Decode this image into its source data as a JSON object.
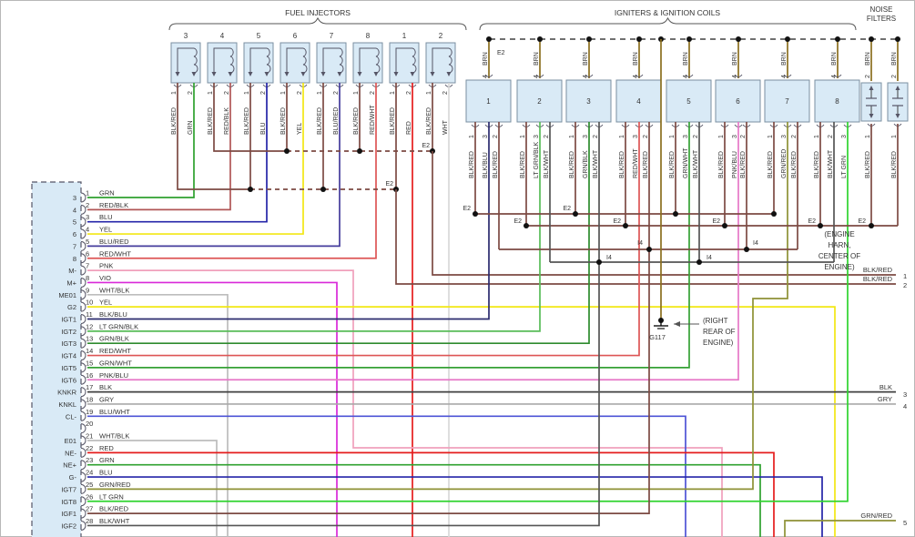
{
  "sections": {
    "fuel_injectors": "FUEL INJECTORS",
    "igniters": "IGNITERS & IGNITION COILS",
    "noise_filters_line1": "NOISE",
    "noise_filters_line2": "FILTERS"
  },
  "injectors": [
    {
      "number": "3",
      "pins": [
        {
          "num": "1",
          "wire": "BLK/RED"
        },
        {
          "num": "2",
          "wire": "GRN"
        }
      ]
    },
    {
      "number": "4",
      "pins": [
        {
          "num": "1",
          "wire": "BLK/RED"
        },
        {
          "num": "2",
          "wire": "RED/BLK"
        }
      ]
    },
    {
      "number": "5",
      "pins": [
        {
          "num": "1",
          "wire": "BLK/RED"
        },
        {
          "num": "2",
          "wire": "BLU"
        }
      ]
    },
    {
      "number": "6",
      "pins": [
        {
          "num": "1",
          "wire": "BLK/RED"
        },
        {
          "num": "2",
          "wire": "YEL"
        }
      ]
    },
    {
      "number": "7",
      "pins": [
        {
          "num": "1",
          "wire": "BLK/RED"
        },
        {
          "num": "2",
          "wire": "BLU/RED"
        }
      ]
    },
    {
      "number": "8",
      "pins": [
        {
          "num": "1",
          "wire": "BLK/RED"
        },
        {
          "num": "2",
          "wire": "RED/WHT"
        }
      ]
    },
    {
      "number": "1",
      "pins": [
        {
          "num": "1",
          "wire": "BLK/RED"
        },
        {
          "num": "2",
          "wire": "RED"
        }
      ]
    },
    {
      "number": "2",
      "pins": [
        {
          "num": "1",
          "wire": "BLK/RED"
        },
        {
          "num": "2",
          "wire": "WHT"
        }
      ]
    }
  ],
  "igniters": [
    {
      "number": "1",
      "top_pin": {
        "num": "4",
        "wire": "BRN"
      },
      "bottom_pins": [
        {
          "num": "1",
          "wire": "BLK/RED"
        },
        {
          "num": "3",
          "wire": "BLK/BLU"
        },
        {
          "num": "2",
          "wire": "BLK/RED"
        }
      ]
    },
    {
      "number": "2",
      "top_pin": {
        "num": "4",
        "wire": "BRN"
      },
      "bottom_pins": [
        {
          "num": "1",
          "wire": "BLK/RED"
        },
        {
          "num": "3",
          "wire": "LT GRN/BLK"
        },
        {
          "num": "2",
          "wire": "BLK/WHT"
        }
      ]
    },
    {
      "number": "3",
      "top_pin": {
        "num": "4",
        "wire": "BRN"
      },
      "bottom_pins": [
        {
          "num": "1",
          "wire": "BLK/RED"
        },
        {
          "num": "3",
          "wire": "GRN/BLK"
        },
        {
          "num": "2",
          "wire": "BLK/WHT"
        }
      ]
    },
    {
      "number": "4",
      "top_pin": {
        "num": "4",
        "wire": "BRN"
      },
      "bottom_pins": [
        {
          "num": "1",
          "wire": "BLK/RED"
        },
        {
          "num": "3",
          "wire": "RED/WHT"
        },
        {
          "num": "2",
          "wire": "BLK/RED"
        }
      ]
    },
    {
      "number": "5",
      "top_pin": {
        "num": "4",
        "wire": "BRN"
      },
      "bottom_pins": [
        {
          "num": "1",
          "wire": "BLK/RED"
        },
        {
          "num": "3",
          "wire": "GRN/WHT"
        },
        {
          "num": "2",
          "wire": "BLK/WHT"
        }
      ]
    },
    {
      "number": "6",
      "top_pin": {
        "num": "4",
        "wire": "BRN"
      },
      "bottom_pins": [
        {
          "num": "1",
          "wire": "BLK/RED"
        },
        {
          "num": "3",
          "wire": "PNK/BLU"
        },
        {
          "num": "2",
          "wire": "BLK/RED"
        }
      ]
    },
    {
      "number": "7",
      "top_pin": {
        "num": "4",
        "wire": "BRN"
      },
      "bottom_pins": [
        {
          "num": "1",
          "wire": "BLK/RED"
        },
        {
          "num": "3",
          "wire": "GRN/RED"
        },
        {
          "num": "2",
          "wire": "BLK/RED"
        }
      ]
    },
    {
      "number": "8",
      "top_pin": {
        "num": "4",
        "wire": "BRN"
      },
      "bottom_pins": [
        {
          "num": "1",
          "wire": "BLK/RED"
        },
        {
          "num": "2",
          "wire": "BLK/WHT"
        },
        {
          "num": "3",
          "wire": "LT GRN"
        }
      ]
    }
  ],
  "noise_filters": [
    {
      "top_pin": {
        "num": "2",
        "wire": "BRN"
      },
      "bottom_pin": {
        "num": "1",
        "wire": "BLK/RED"
      }
    },
    {
      "top_pin": {
        "num": "2",
        "wire": "BRN"
      },
      "bottom_pin": {
        "num": "1",
        "wire": "BLK/RED"
      }
    }
  ],
  "ecu_connector": {
    "pins": [
      {
        "num": "1",
        "name": "3",
        "wire": "GRN"
      },
      {
        "num": "2",
        "name": "4",
        "wire": "RED/BLK"
      },
      {
        "num": "3",
        "name": "5",
        "wire": "BLU"
      },
      {
        "num": "4",
        "name": "6",
        "wire": "YEL"
      },
      {
        "num": "5",
        "name": "7",
        "wire": "BLU/RED"
      },
      {
        "num": "6",
        "name": "8",
        "wire": "RED/WHT"
      },
      {
        "num": "7",
        "name": "M-",
        "wire": "PNK"
      },
      {
        "num": "8",
        "name": "M+",
        "wire": "VIO"
      },
      {
        "num": "9",
        "name": "ME01",
        "wire": "WHT/BLK"
      },
      {
        "num": "10",
        "name": "G2",
        "wire": "YEL"
      },
      {
        "num": "11",
        "name": "IGT1",
        "wire": "BLK/BLU"
      },
      {
        "num": "12",
        "name": "IGT2",
        "wire": "LT GRN/BLK"
      },
      {
        "num": "13",
        "name": "IGT3",
        "wire": "GRN/BLK"
      },
      {
        "num": "14",
        "name": "IGT4",
        "wire": "RED/WHT"
      },
      {
        "num": "15",
        "name": "IGT5",
        "wire": "GRN/WHT"
      },
      {
        "num": "16",
        "name": "IGT6",
        "wire": "PNK/BLU"
      },
      {
        "num": "17",
        "name": "KNKR",
        "wire": "BLK"
      },
      {
        "num": "18",
        "name": "KNKL",
        "wire": "GRY"
      },
      {
        "num": "19",
        "name": "CL-",
        "wire": "BLU/WHT"
      },
      {
        "num": "20",
        "name": "",
        "wire": ""
      },
      {
        "num": "21",
        "name": "E01",
        "wire": "WHT/BLK"
      },
      {
        "num": "22",
        "name": "NE-",
        "wire": "RED"
      },
      {
        "num": "23",
        "name": "NE+",
        "wire": "GRN"
      },
      {
        "num": "24",
        "name": "G-",
        "wire": "BLU"
      },
      {
        "num": "25",
        "name": "IGT7",
        "wire": "GRN/RED"
      },
      {
        "num": "26",
        "name": "IGT8",
        "wire": "LT GRN"
      },
      {
        "num": "27",
        "name": "IGF1",
        "wire": "BLK/RED"
      },
      {
        "num": "28",
        "name": "IGF2",
        "wire": "BLK/WHT"
      }
    ]
  },
  "junctions": {
    "e2": "E2",
    "i4": "I4",
    "ground": {
      "id": "G117",
      "location": [
        "(RIGHT",
        "REAR OF",
        "ENGINE)"
      ]
    },
    "engine_ground_note": [
      "(ENGINE",
      "HARN,",
      "CENTER OF",
      "ENGINE)"
    ]
  },
  "edge_tags": [
    {
      "num": "1",
      "wire": "BLK/RED"
    },
    {
      "num": "2",
      "wire": "BLK/RED"
    },
    {
      "num": "3",
      "wire": "BLK"
    },
    {
      "num": "4",
      "wire": "GRY"
    },
    {
      "num": "5",
      "wire": "GRN/RED"
    }
  ],
  "palette": {
    "GRN": "#2ea12e",
    "RED/BLK": "#b05656",
    "BLU": "#2424a8",
    "YEL": "#f2e713",
    "BLU/RED": "#453c9c",
    "RED/WHT": "#dd5555",
    "PNK": "#f0a0bc",
    "VIO": "#d929d9",
    "WHT/BLK": "#bdbdbd",
    "BLK/BLU": "#2b2b6e",
    "LT GRN/BLK": "#58bc58",
    "GRN/BLK": "#2e8b2e",
    "GRN/WHT": "#35a135",
    "PNK/BLU": "#e678c8",
    "BLK": "#404040",
    "GRY": "#a8a8a8",
    "BLU/WHT": "#4d53d6",
    "RED": "#e51c1c",
    "GRN/RED": "#8e9135",
    "LT GRN": "#2ed32e",
    "BLK/RED": "#7c4a43",
    "BLK/WHT": "#555555",
    "BRN": "#8b6f1f",
    "WHT": "#d8d8d8",
    "box_fill": "#d9eaf6",
    "box_stroke": "#7a8fa0",
    "text": "#333333"
  }
}
